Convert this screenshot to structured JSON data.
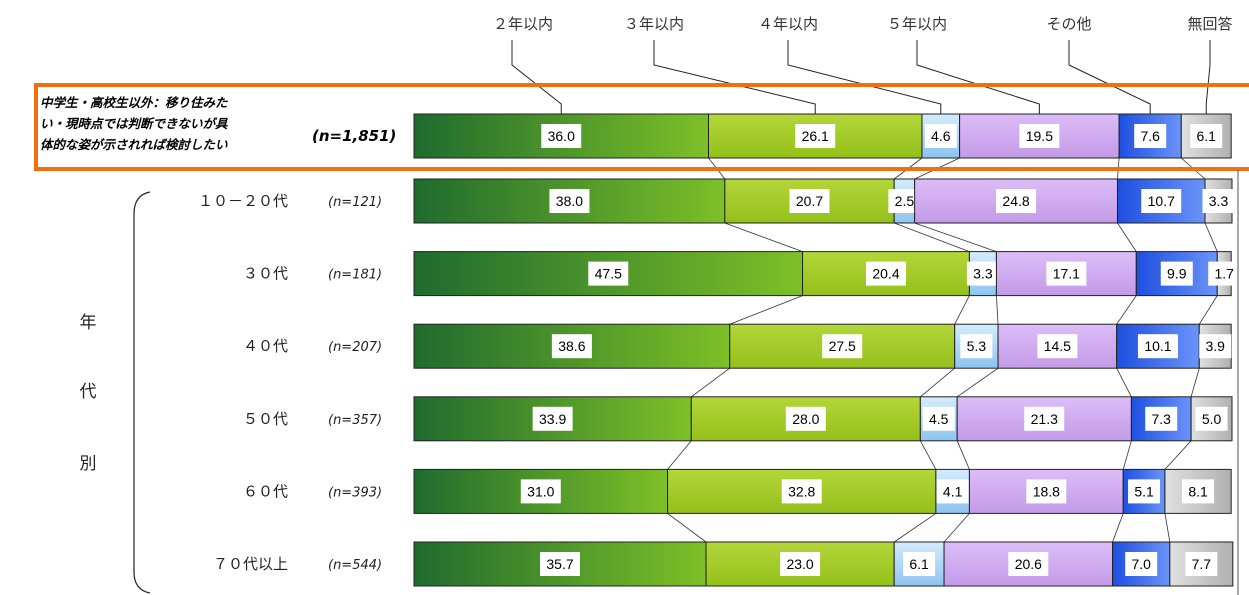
{
  "chart_data": {
    "type": "bar",
    "orientation": "horizontal-stacked-100",
    "categories_legend": [
      "２年以内",
      "３年以内",
      "４年以内",
      "５年以内",
      "その他",
      "無回答"
    ],
    "colors": [
      "#2e8b3c",
      "#a6cc2a",
      "#a9d4f5",
      "#cfa8f0",
      "#3c6cf0",
      "#c8c8c8"
    ],
    "highlight": {
      "label_lines": [
        "中学生・高校生以外：移り住みた",
        "い・現時点では判断できないが具",
        "体的な姿が示されれば検討したい"
      ],
      "n": "(n=1,851)",
      "values": [
        36.0,
        26.1,
        4.6,
        19.5,
        7.6,
        6.1
      ],
      "border_color": "#f07010"
    },
    "group_label_chars": [
      "年",
      "代",
      "別"
    ],
    "rows": [
      {
        "label": "１０－２０代",
        "n": "(n=121)",
        "values": [
          38.0,
          20.7,
          2.5,
          24.8,
          10.7,
          3.3
        ]
      },
      {
        "label": "３０代",
        "n": "(n=181)",
        "values": [
          47.5,
          20.4,
          3.3,
          17.1,
          9.9,
          1.7
        ]
      },
      {
        "label": "４０代",
        "n": "(n=207)",
        "values": [
          38.6,
          27.5,
          5.3,
          14.5,
          10.1,
          3.9
        ]
      },
      {
        "label": "５０代",
        "n": "(n=357)",
        "values": [
          33.9,
          28.0,
          4.5,
          21.3,
          7.3,
          5.0
        ]
      },
      {
        "label": "６０代",
        "n": "(n=393)",
        "values": [
          31.0,
          32.8,
          4.1,
          18.8,
          5.1,
          8.1
        ]
      },
      {
        "label": "７０代以上",
        "n": "(n=544)",
        "values": [
          35.7,
          23.0,
          6.1,
          20.6,
          7.0,
          7.7
        ]
      }
    ],
    "xlim": [
      0,
      100
    ]
  }
}
